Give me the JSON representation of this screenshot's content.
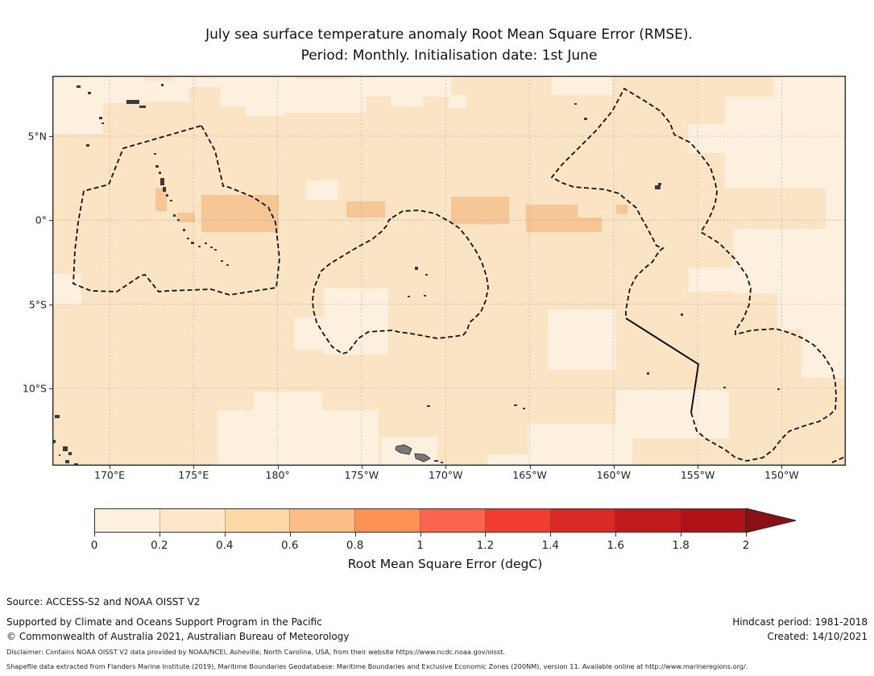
{
  "title": {
    "line1": "July sea surface temperature anomaly Root Mean Square Error (RMSE).",
    "line2": "Period: Monthly. Initialisation date: 1st June"
  },
  "map": {
    "x_ticks": [
      "170°E",
      "175°E",
      "180°",
      "175°W",
      "170°W",
      "165°W",
      "160°W",
      "155°W",
      "150°W"
    ],
    "y_ticks": [
      "5°N",
      "0°",
      "5°S",
      "10°S"
    ]
  },
  "map_colors": {
    "base": "#fbe4c4",
    "light": "#fdf0de",
    "dark": "#f6c795",
    "grid": "#9a9a9a",
    "boundary": "#111111",
    "island": "#3a3a3a",
    "island_fill": "#787878"
  },
  "colorbar": {
    "label": "Root Mean Square Error (degC)",
    "ticks": [
      "0",
      "0.2",
      "0.4",
      "0.6",
      "0.8",
      "1",
      "1.2",
      "1.4",
      "1.6",
      "1.8",
      "2"
    ],
    "segment_colors": [
      "#fdf0dd",
      "#fde7c9",
      "#fcd8a4",
      "#fcbe85",
      "#fc9355",
      "#f9664d",
      "#f23d31",
      "#d92b24",
      "#c11a1d",
      "#b11218"
    ],
    "arrow_color": "#8c0f14",
    "extend": "max"
  },
  "chart_data": {
    "type": "heatmap",
    "title": "July sea surface temperature anomaly Root Mean Square Error (RMSE). Period: Monthly. Initialisation date: 1st June",
    "x_axis": {
      "tick_labels": [
        "170°E",
        "175°E",
        "180°",
        "175°W",
        "170°W",
        "165°W",
        "160°W",
        "155°W",
        "150°W"
      ]
    },
    "y_axis": {
      "tick_labels": [
        "5°N",
        "0°",
        "5°S",
        "10°S"
      ]
    },
    "colorbar": {
      "label": "Root Mean Square Error (degC)",
      "tick_values": [
        0,
        0.2,
        0.4,
        0.6,
        0.8,
        1,
        1.2,
        1.4,
        1.6,
        1.8,
        2
      ],
      "extend": "max"
    },
    "value_summary": "RMSE over the tropical Pacific is mostly 0.2-0.4 degC (peach), with scattered 0-0.2 degC patches (cream) and a few 0.4-0.6 degC patches (orange) near the equator between 175°E-180° and 170°W-163°W. Dashed outlines mark EEZ-style maritime boundaries; one boundary segment near 157°W-155°W, 6°S-11°S is solid."
  },
  "footer": {
    "source": "Source: ACCESS-S2 and NOAA OISST V2",
    "support_line1": "Supported by Climate and Oceans Support Program in the Pacific",
    "support_line2": "© Commonwealth of Australia 2021, Australian Bureau of Meteorology",
    "hindcast": "Hindcast period: 1981-2018",
    "created": "Created: 14/10/2021",
    "disclaimer": "Disclaimer: Contains NOAA OISST V2 data provided by NOAA/NCEI, Asheville, North Carolina, USA, from their website https://www.ncdc.noaa.gov/oisst.",
    "shapefile": "Shapefile data extracted from Flanders Marine Institute (2019), Maritime Boundaries Geodatabase: Maritime Boundaries and Exclusive Economic Zones (200NM), version 11. Available online at http://www.marineregions.org/."
  }
}
